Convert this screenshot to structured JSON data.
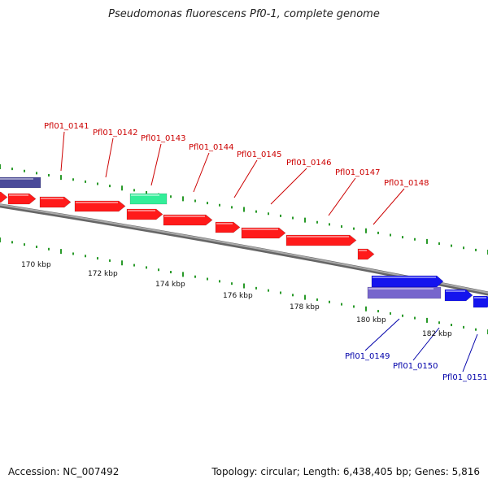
{
  "title": "Pseudomonas fluorescens Pf0-1, complete genome",
  "footer": {
    "accession": "Accession: NC_007492",
    "summary": "Topology: circular; Length: 6,438,405 bp; Genes: 5,816"
  },
  "colors": {
    "forward_gene": "#ff1a1a",
    "reverse_gene": "#1414ee",
    "rna_gene": "#33ee99",
    "pseudo_gene": "#7766cc",
    "dark_gene": "#4a4a99",
    "backbone": "#888888",
    "ticks": "#2a9a2a",
    "forward_label": "#cc0000",
    "reverse_label": "#0000aa"
  },
  "scale_labels": [
    "170 kbp",
    "172 kbp",
    "174 kbp",
    "176 kbp",
    "178 kbp",
    "180 kbp",
    "182 kbp"
  ],
  "forward_labels": [
    "Pfl01_0141",
    "Pfl01_0142",
    "Pfl01_0143",
    "Pfl01_0144",
    "Pfl01_0145",
    "Pfl01_0146",
    "Pfl01_0147",
    "Pfl01_0148"
  ],
  "reverse_labels": [
    "Pfl01_0149",
    "Pfl01_0150",
    "Pfl01_0151"
  ]
}
